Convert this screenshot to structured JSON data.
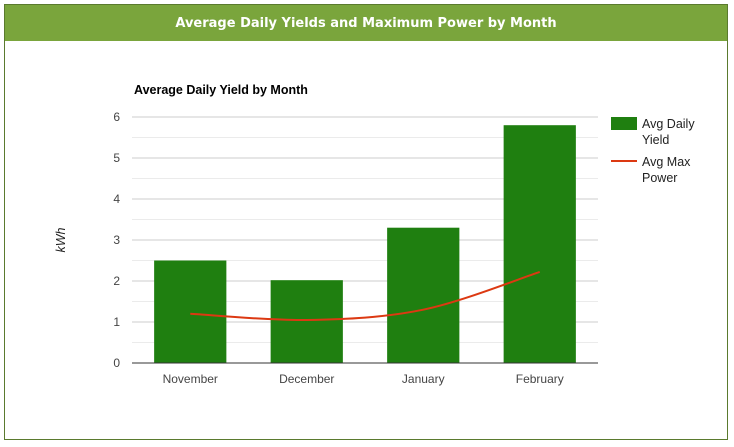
{
  "header": {
    "title": "Average Daily Yields and Maximum Power by Month"
  },
  "colors": {
    "header_bg": "#7aa53c",
    "bar": "#1f7f10",
    "line": "#dc3912",
    "grid": "#cccccc"
  },
  "chart_data": {
    "type": "bar",
    "title": "Average Daily Yield by Month",
    "xlabel": "",
    "ylabel": "kWh",
    "categories": [
      "November",
      "December",
      "January",
      "February"
    ],
    "ylim": [
      0,
      6
    ],
    "yticks": [
      "0",
      "1",
      "2",
      "3",
      "4",
      "5",
      "6"
    ],
    "grid": true,
    "legend_position": "right",
    "series": [
      {
        "name": "Avg Daily Yield",
        "type": "bar",
        "values": [
          2.5,
          2.02,
          3.3,
          5.8
        ]
      },
      {
        "name": "Avg Max Power",
        "type": "line",
        "values": [
          1.2,
          1.05,
          1.3,
          2.22
        ]
      }
    ],
    "legend": [
      {
        "lines": [
          "Avg Daily",
          "Yield"
        ]
      },
      {
        "lines": [
          "Avg Max",
          "Power"
        ]
      }
    ]
  }
}
